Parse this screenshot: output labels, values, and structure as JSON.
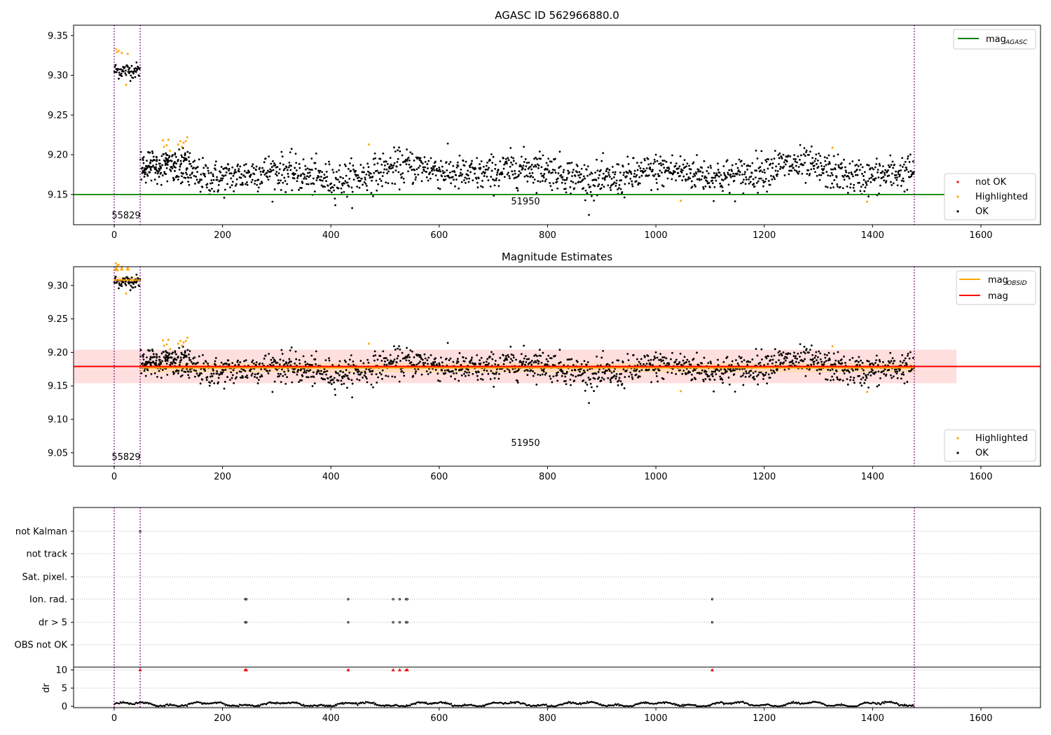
{
  "chart_data": [
    {
      "type": "scatter",
      "title": "AGASC ID 562966880.0",
      "xlim": [
        -75,
        1710
      ],
      "ylim": [
        9.112,
        9.363
      ],
      "xticks": [
        0,
        200,
        400,
        600,
        800,
        1000,
        1200,
        1400,
        1600
      ],
      "yticks": [
        "9.15",
        "9.20",
        "9.25",
        "9.30",
        "9.35"
      ],
      "grid": false,
      "legend_top": {
        "placement": "top-right",
        "entries": [
          "mag",
          "AGASC"
        ]
      },
      "legend_bottom": {
        "placement": "bottom-right",
        "entries": [
          "not OK",
          "Highlighted",
          "OK"
        ]
      },
      "colors": {
        "ok": "#000000",
        "highlighted": "#ffa500",
        "not_ok": "#ff0000",
        "agasc_line": "#008000",
        "vline": "#800080"
      },
      "vlines": [
        0,
        48,
        1477
      ],
      "annotations": [
        {
          "text": "55829",
          "x": 22,
          "y": 9.12
        },
        {
          "text": "51950",
          "x": 760,
          "y": 9.136
        }
      ],
      "mag_agasc": 9.15,
      "series": [
        {
          "name": "OK",
          "segments": [
            {
              "x": [
                0,
                48
              ],
              "mean": 9.306,
              "spread": 0.005
            },
            {
              "x": [
                48,
                1477
              ],
              "mean": 9.177,
              "spread": 0.011
            }
          ]
        },
        {
          "name": "Highlighted",
          "points": [
            [
              3,
              9.333
            ],
            [
              5,
              9.329
            ],
            [
              8,
              9.331
            ],
            [
              14,
              9.328
            ],
            [
              22,
              9.288
            ],
            [
              25,
              9.327
            ],
            [
              90,
              9.218
            ],
            [
              92,
              9.21
            ],
            [
              97,
              9.212
            ],
            [
              100,
              9.219
            ],
            [
              103,
              9.205
            ],
            [
              118,
              9.213
            ],
            [
              122,
              9.217
            ],
            [
              125,
              9.21
            ],
            [
              128,
              9.215
            ],
            [
              132,
              9.217
            ],
            [
              135,
              9.222
            ],
            [
              470,
              9.213
            ],
            [
              1046,
              9.142
            ],
            [
              1326,
              9.209
            ],
            [
              1390,
              9.141
            ]
          ]
        }
      ]
    },
    {
      "type": "scatter",
      "title": "Magnitude Estimates",
      "xlim": [
        -75,
        1710
      ],
      "ylim": [
        9.03,
        9.328
      ],
      "xticks": [
        0,
        200,
        400,
        600,
        800,
        1000,
        1200,
        1400,
        1600
      ],
      "yticks": [
        "9.05",
        "9.10",
        "9.15",
        "9.20",
        "9.25",
        "9.30"
      ],
      "grid": false,
      "legend_top": {
        "placement": "top-right",
        "entries": [
          "mag",
          "OBSID",
          "mag"
        ]
      },
      "legend_bottom": {
        "placement": "bottom-right",
        "entries": [
          "Highlighted",
          "OK"
        ]
      },
      "colors": {
        "ok": "#000000",
        "highlighted": "#ffa500",
        "mag_line": "#ff0000",
        "mag_obsid": "#ffa500",
        "band": "#ffd6d6",
        "band_inner": "#ffe0b0",
        "vline": "#800080"
      },
      "vlines": [
        0,
        48,
        1477
      ],
      "annotations": [
        {
          "text": "55829",
          "x": 22,
          "y": 9.036
        },
        {
          "text": "51950",
          "x": 760,
          "y": 9.062
        }
      ],
      "mag": 9.179,
      "mag_band": [
        9.154,
        9.204
      ],
      "mag_obsid": [
        {
          "x": [
            0,
            48
          ],
          "value": 9.308,
          "band": [
            9.303,
            9.313
          ]
        },
        {
          "x": [
            48,
            1477
          ],
          "value": 9.177,
          "band": [
            9.17,
            9.184
          ]
        }
      ],
      "highlighted_triangles": [
        [
          3,
          9.325
        ],
        [
          5,
          9.324
        ],
        [
          14,
          9.325
        ],
        [
          25,
          9.325
        ]
      ]
    },
    {
      "type": "scatter",
      "title": "",
      "xlim": [
        -75,
        1710
      ],
      "xticks": [
        0,
        200,
        400,
        600,
        800,
        1000,
        1200,
        1400,
        1600
      ],
      "categories": [
        "not Kalman",
        "not track",
        "Sat. pixel.",
        "Ion. rad.",
        "dr > 5",
        "OBS not OK"
      ],
      "flags": {
        "not Kalman": [
          48
        ],
        "Ion. rad.": [
          242,
          244,
          432,
          515,
          527,
          539,
          541,
          1104
        ],
        "dr > 5": [
          242,
          244,
          432,
          515,
          527,
          539,
          541,
          1104
        ]
      },
      "dr_ylabel": "dr",
      "dr_yticks": [
        "0",
        "5",
        "10"
      ],
      "dr_ylim": [
        0,
        10
      ],
      "dr_flagged": [
        48,
        242,
        244,
        432,
        515,
        527,
        539,
        541,
        1104
      ],
      "vlines": [
        0,
        48,
        1477
      ]
    }
  ]
}
